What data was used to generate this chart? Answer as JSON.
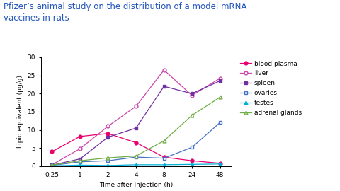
{
  "title_line1": "Pfizer’s animal study on the distribution of a model mRNA",
  "title_line2": "vaccines in rats",
  "title_color": "#2255bb",
  "xlabel": "Time after injection (h)",
  "ylabel": "Lipid equivalent (µg/g)",
  "x_tick_labels": [
    "0.25",
    "1",
    "2",
    "4",
    "8",
    "24",
    "48"
  ],
  "ylim": [
    0,
    30
  ],
  "yticks": [
    0,
    5,
    10,
    15,
    20,
    25,
    30
  ],
  "series": {
    "blood plasma": {
      "color": "#e8006e",
      "marker": "o",
      "markerfacecolor": "#e8006e",
      "values": [
        4.0,
        8.2,
        9.0,
        6.5,
        2.5,
        1.5,
        0.8
      ]
    },
    "liver": {
      "color": "#cc44aa",
      "marker": "o",
      "markerfacecolor": "white",
      "values": [
        0.4,
        4.8,
        11.0,
        16.5,
        26.5,
        19.5,
        24.2
      ]
    },
    "spleen": {
      "color": "#7030a0",
      "marker": "s",
      "markerfacecolor": "#7030a0",
      "values": [
        0.3,
        2.0,
        8.0,
        10.5,
        22.0,
        20.0,
        23.5
      ]
    },
    "ovaries": {
      "color": "#4472c4",
      "marker": "s",
      "markerfacecolor": "white",
      "values": [
        0.2,
        1.2,
        1.5,
        2.5,
        2.2,
        5.2,
        12.0
      ]
    },
    "testes": {
      "color": "#00b0d8",
      "marker": "^",
      "markerfacecolor": "#00b0d8",
      "values": [
        0.1,
        0.3,
        0.2,
        0.4,
        0.4,
        0.5,
        0.6
      ]
    },
    "adrenal glands": {
      "color": "#70ad47",
      "marker": "^",
      "markerfacecolor": "white",
      "values": [
        0.3,
        1.5,
        2.3,
        2.8,
        7.0,
        14.0,
        19.0
      ]
    }
  },
  "legend_order": [
    "blood plasma",
    "liver",
    "spleen",
    "ovaries",
    "testes",
    "adrenal glands"
  ],
  "background_color": "#ffffff",
  "axis_label_fontsize": 6.5,
  "tick_fontsize": 6.5,
  "title_fontsize": 8.5,
  "legend_fontsize": 6.5
}
